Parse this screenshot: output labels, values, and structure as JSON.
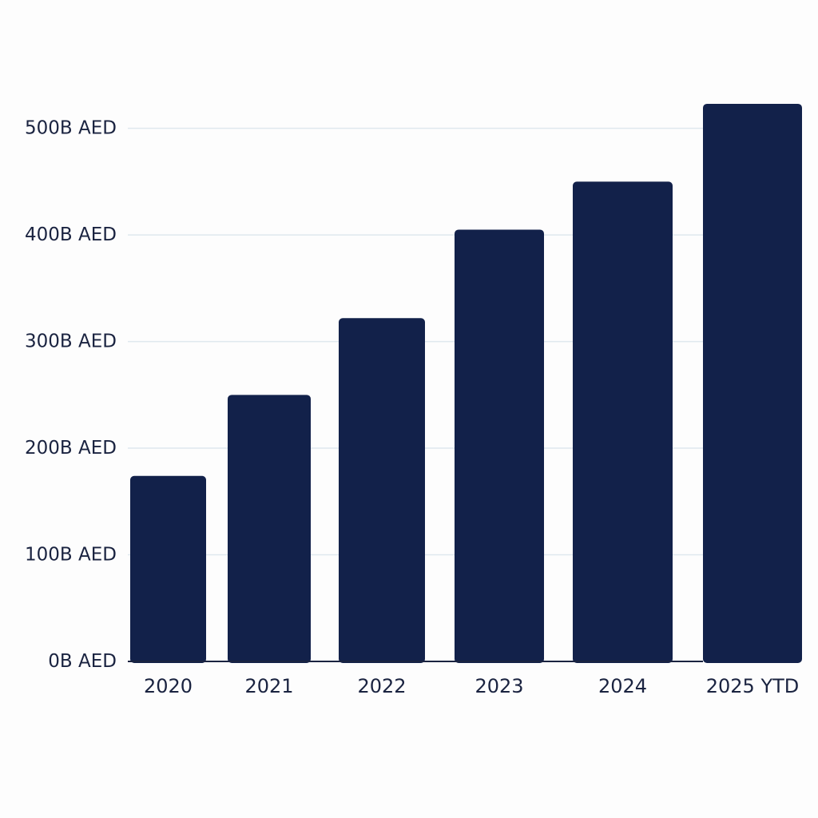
{
  "chart_data": {
    "type": "bar",
    "categories": [
      "2020",
      "2021",
      "2022",
      "2023",
      "2024",
      "2025 YTD"
    ],
    "values": [
      174,
      250,
      322,
      405,
      450,
      523
    ],
    "title": "",
    "xlabel": "",
    "ylabel": "",
    "ylim": [
      0,
      500
    ],
    "y_ticks": [
      0,
      100,
      200,
      300,
      400,
      500
    ],
    "y_tick_labels": [
      "0B AED",
      "100B AED",
      "200B AED",
      "300B AED",
      "400B AED",
      "500B AED"
    ],
    "grid": true,
    "legend": "none",
    "colors": {
      "bar": "#12214a",
      "grid": "#dfe8ee",
      "axis": "#1a2340",
      "text": "#1a2340",
      "background": "#fdfdfd"
    }
  }
}
